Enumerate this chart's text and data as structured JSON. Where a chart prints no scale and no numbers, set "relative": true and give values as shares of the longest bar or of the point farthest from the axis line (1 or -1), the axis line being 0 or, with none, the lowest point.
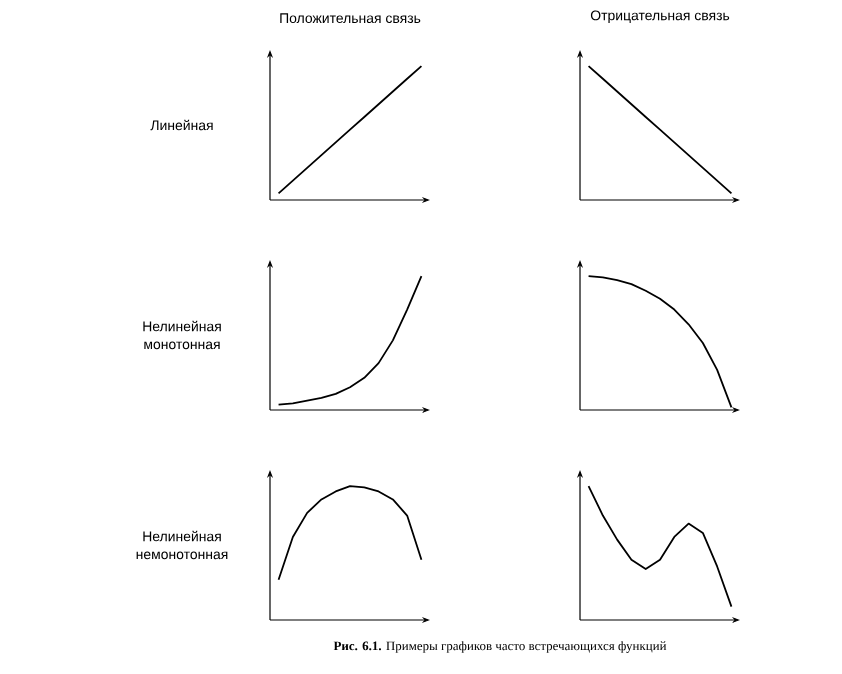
{
  "chart_data": [
    {
      "type": "line",
      "title": "Положительная связь",
      "ylabel": "Линейная",
      "relative": true,
      "color": "#000000",
      "categories": [
        null,
        null,
        null,
        null,
        null,
        null,
        null,
        null,
        null,
        null,
        null
      ],
      "values": [
        0.05,
        0.145,
        0.24,
        0.335,
        0.43,
        0.525,
        0.62,
        0.715,
        0.81,
        0.905,
        1.0
      ]
    },
    {
      "type": "line",
      "title": "Отрицательная связь",
      "relative": true,
      "color": "#000000",
      "categories": [
        null,
        null,
        null,
        null,
        null,
        null,
        null,
        null,
        null,
        null,
        null
      ],
      "values": [
        1.0,
        0.905,
        0.81,
        0.715,
        0.62,
        0.525,
        0.43,
        0.335,
        0.24,
        0.145,
        0.05
      ]
    },
    {
      "type": "line",
      "ylabel": "Нелинейная монотонная",
      "relative": true,
      "color": "#000000",
      "categories": [
        null,
        null,
        null,
        null,
        null,
        null,
        null,
        null,
        null,
        null,
        null
      ],
      "values": [
        0.04,
        0.05,
        0.07,
        0.09,
        0.12,
        0.17,
        0.24,
        0.35,
        0.52,
        0.75,
        1.0
      ]
    },
    {
      "type": "line",
      "relative": true,
      "color": "#000000",
      "categories": [
        null,
        null,
        null,
        null,
        null,
        null,
        null,
        null,
        null,
        null,
        null
      ],
      "values": [
        1.0,
        0.99,
        0.97,
        0.94,
        0.89,
        0.83,
        0.75,
        0.64,
        0.5,
        0.3,
        0.02
      ]
    },
    {
      "type": "line",
      "ylabel": "Нелинейная немонотонная",
      "relative": true,
      "color": "#000000",
      "categories": [
        null,
        null,
        null,
        null,
        null,
        null,
        null,
        null,
        null,
        null,
        null
      ],
      "values": [
        0.3,
        0.62,
        0.8,
        0.9,
        0.96,
        1.0,
        0.99,
        0.96,
        0.9,
        0.78,
        0.45
      ]
    },
    {
      "type": "line",
      "relative": true,
      "color": "#000000",
      "categories": [
        null,
        null,
        null,
        null,
        null,
        null,
        null,
        null,
        null,
        null,
        null
      ],
      "values": [
        1.0,
        0.78,
        0.6,
        0.45,
        0.38,
        0.45,
        0.62,
        0.72,
        0.65,
        0.4,
        0.1
      ],
      "annotations": [
        "**Рис. 6.1.** Примеры графиков часто встречающихся функций"
      ]
    }
  ]
}
